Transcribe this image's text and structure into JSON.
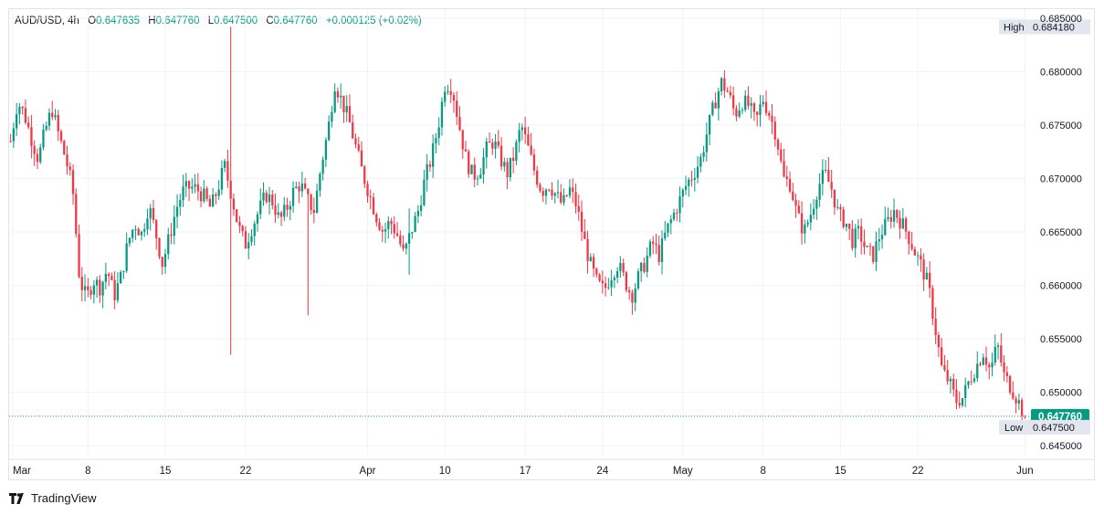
{
  "header": {
    "symbol": "AUD/USD",
    "interval": "4h",
    "open_label": "O",
    "open": "0.647635",
    "high_label": "H",
    "high": "0.647760",
    "low_label": "L",
    "low": "0.647500",
    "close_label": "C",
    "close": "0.647760",
    "change": "+0.000125 (+0.02%)"
  },
  "brand": {
    "logo_text": "TV",
    "name": "TradingView"
  },
  "colors": {
    "up": "#089981",
    "down": "#f23645",
    "grid": "#f0f3fa",
    "axis_text": "#131722",
    "last_price_badge": "#089981",
    "label_badge": "#e3e6ee"
  },
  "chart_data": {
    "type": "candlestick",
    "ylim": [
      0.6445,
      0.6855
    ],
    "y_ticks": [
      "0.645000",
      "0.650000",
      "0.655000",
      "0.660000",
      "0.665000",
      "0.670000",
      "0.675000",
      "0.680000",
      "0.685000"
    ],
    "x_ticks": [
      "Mar",
      "8",
      "15",
      "22",
      "Apr",
      "10",
      "17",
      "24",
      "May",
      "8",
      "15",
      "22",
      "Jun"
    ],
    "high_label": {
      "text": "High",
      "value": "0.684180"
    },
    "low_label": {
      "text": "Low",
      "value": "0.647500"
    },
    "last_price": "0.647760",
    "grid": true,
    "close_path": [
      [
        0,
        0.6735
      ],
      [
        3,
        0.6772
      ],
      [
        6,
        0.676
      ],
      [
        9,
        0.6738
      ],
      [
        12,
        0.6718
      ],
      [
        15,
        0.6745
      ],
      [
        18,
        0.6765
      ],
      [
        21,
        0.674
      ],
      [
        24,
        0.6718
      ],
      [
        27,
        0.669
      ],
      [
        30,
        0.6605
      ],
      [
        33,
        0.6588
      ],
      [
        36,
        0.6605
      ],
      [
        39,
        0.6598
      ],
      [
        42,
        0.6615
      ],
      [
        45,
        0.659
      ],
      [
        48,
        0.6608
      ],
      [
        51,
        0.664
      ],
      [
        54,
        0.6658
      ],
      [
        57,
        0.6648
      ],
      [
        60,
        0.6675
      ],
      [
        63,
        0.665
      ],
      [
        66,
        0.662
      ],
      [
        69,
        0.6645
      ],
      [
        72,
        0.6672
      ],
      [
        75,
        0.6688
      ],
      [
        78,
        0.6692
      ],
      [
        81,
        0.669
      ],
      [
        84,
        0.6683
      ],
      [
        87,
        0.6672
      ],
      [
        90,
        0.669
      ],
      [
        93,
        0.6712
      ],
      [
        96,
        0.6685
      ],
      [
        99,
        0.6655
      ],
      [
        102,
        0.6638
      ],
      [
        105,
        0.6655
      ],
      [
        108,
        0.667
      ],
      [
        111,
        0.6685
      ],
      [
        114,
        0.6678
      ],
      [
        117,
        0.666
      ],
      [
        120,
        0.6672
      ],
      [
        123,
        0.6688
      ],
      [
        126,
        0.6695
      ],
      [
        129,
        0.668
      ],
      [
        132,
        0.667
      ],
      [
        135,
        0.6712
      ],
      [
        138,
        0.6745
      ],
      [
        141,
        0.679
      ],
      [
        144,
        0.6772
      ],
      [
        147,
        0.6755
      ],
      [
        150,
        0.673
      ],
      [
        153,
        0.6705
      ],
      [
        156,
        0.6685
      ],
      [
        159,
        0.6665
      ],
      [
        162,
        0.665
      ],
      [
        165,
        0.666
      ],
      [
        168,
        0.6648
      ],
      [
        171,
        0.6628
      ],
      [
        174,
        0.665
      ],
      [
        177,
        0.6668
      ],
      [
        180,
        0.6698
      ],
      [
        183,
        0.672
      ],
      [
        186,
        0.675
      ],
      [
        189,
        0.679
      ],
      [
        192,
        0.6785
      ],
      [
        195,
        0.675
      ],
      [
        198,
        0.6718
      ],
      [
        201,
        0.6702
      ],
      [
        204,
        0.6708
      ],
      [
        207,
        0.6728
      ],
      [
        210,
        0.6735
      ],
      [
        213,
        0.6718
      ],
      [
        216,
        0.6705
      ],
      [
        219,
        0.6722
      ],
      [
        222,
        0.675
      ],
      [
        225,
        0.6728
      ],
      [
        228,
        0.6705
      ],
      [
        231,
        0.6688
      ],
      [
        234,
        0.6695
      ],
      [
        237,
        0.6685
      ],
      [
        240,
        0.6675
      ],
      [
        243,
        0.669
      ],
      [
        246,
        0.6675
      ],
      [
        249,
        0.6645
      ],
      [
        252,
        0.662
      ],
      [
        255,
        0.6602
      ],
      [
        258,
        0.6595
      ],
      [
        261,
        0.661
      ],
      [
        264,
        0.662
      ],
      [
        267,
        0.6605
      ],
      [
        270,
        0.659
      ],
      [
        273,
        0.6608
      ],
      [
        276,
        0.6622
      ],
      [
        279,
        0.664
      ],
      [
        282,
        0.6628
      ],
      [
        285,
        0.665
      ],
      [
        288,
        0.6665
      ],
      [
        291,
        0.668
      ],
      [
        294,
        0.6695
      ],
      [
        297,
        0.6705
      ],
      [
        300,
        0.6718
      ],
      [
        303,
        0.6745
      ],
      [
        306,
        0.677
      ],
      [
        309,
        0.679
      ],
      [
        312,
        0.678
      ],
      [
        315,
        0.676
      ],
      [
        318,
        0.6772
      ],
      [
        321,
        0.6768
      ],
      [
        324,
        0.6752
      ],
      [
        327,
        0.6775
      ],
      [
        330,
        0.676
      ],
      [
        333,
        0.674
      ],
      [
        336,
        0.67
      ],
      [
        339,
        0.6695
      ],
      [
        342,
        0.6665
      ],
      [
        345,
        0.665
      ],
      [
        348,
        0.6668
      ],
      [
        351,
        0.6692
      ],
      [
        354,
        0.6705
      ],
      [
        357,
        0.669
      ],
      [
        360,
        0.6665
      ],
      [
        363,
        0.666
      ],
      [
        366,
        0.6642
      ],
      [
        369,
        0.665
      ],
      [
        372,
        0.6632
      ],
      [
        375,
        0.6628
      ],
      [
        378,
        0.6648
      ],
      [
        381,
        0.6658
      ],
      [
        384,
        0.667
      ],
      [
        387,
        0.666
      ],
      [
        390,
        0.6648
      ],
      [
        393,
        0.6632
      ],
      [
        396,
        0.6618
      ],
      [
        399,
        0.66
      ],
      [
        402,
        0.656
      ],
      [
        405,
        0.652
      ],
      [
        408,
        0.651
      ],
      [
        411,
        0.6492
      ],
      [
        414,
        0.6495
      ],
      [
        417,
        0.6512
      ],
      [
        420,
        0.6525
      ],
      [
        423,
        0.6538
      ],
      [
        426,
        0.652
      ],
      [
        429,
        0.6545
      ],
      [
        432,
        0.6515
      ],
      [
        435,
        0.6505
      ],
      [
        438,
        0.6492
      ],
      [
        441,
        0.6478
      ]
    ],
    "wick_spikes": [
      {
        "index": 74,
        "high": 0.6842,
        "low": 0.6535
      },
      {
        "index": 100,
        "high": 0.669,
        "low": 0.6572
      },
      {
        "index": 134,
        "high": 0.6672,
        "low": 0.661
      }
    ]
  }
}
